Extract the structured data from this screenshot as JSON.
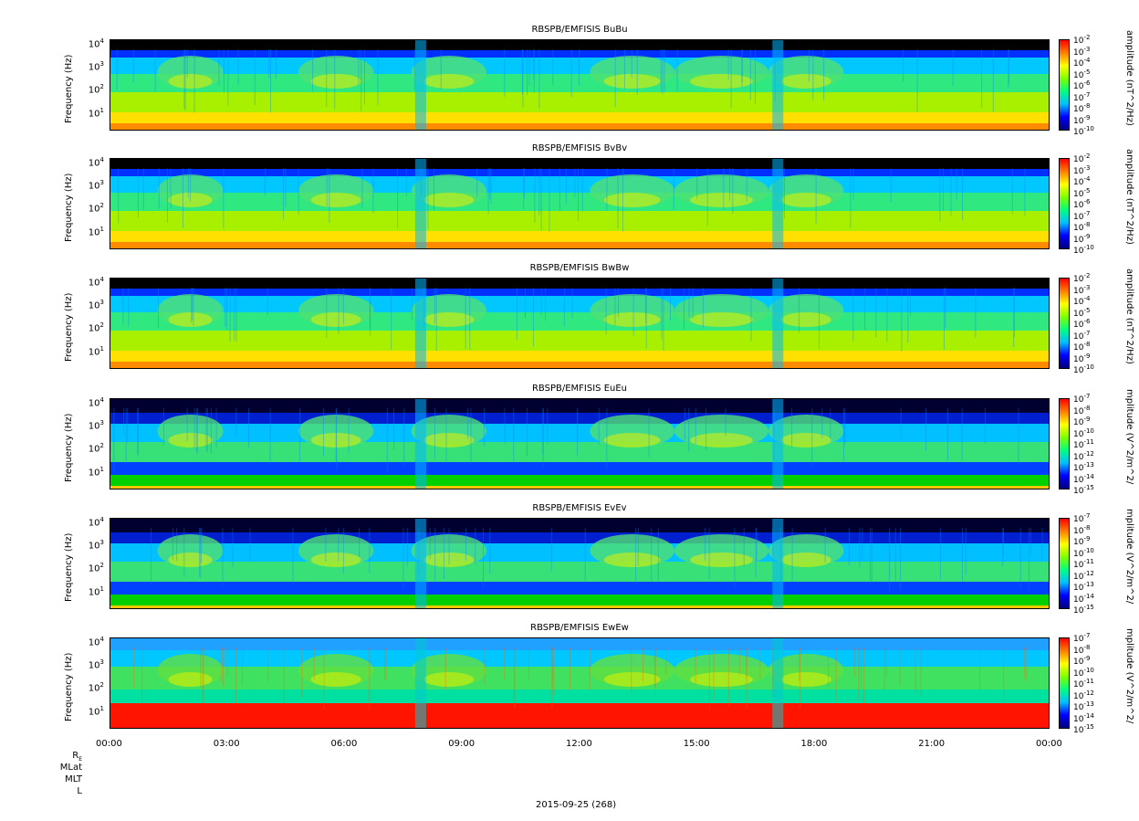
{
  "panels": [
    {
      "title": "RBSPB/EMFISIS  BuBu",
      "cb_label": "amplitude (nT^2/Hz)",
      "cb_ticks": [
        "-2",
        "-3",
        "-4",
        "-5",
        "-6",
        "-7",
        "-8",
        "-9",
        "-10"
      ]
    },
    {
      "title": "RBSPB/EMFISIS  BvBv",
      "cb_label": "amplitude (nT^2/Hz)",
      "cb_ticks": [
        "-2",
        "-3",
        "-4",
        "-5",
        "-6",
        "-7",
        "-8",
        "-9",
        "-10"
      ]
    },
    {
      "title": "RBSPB/EMFISIS  BwBw",
      "cb_label": "amplitude (nT^2/Hz)",
      "cb_ticks": [
        "-2",
        "-3",
        "-4",
        "-5",
        "-6",
        "-7",
        "-8",
        "-9",
        "-10"
      ]
    },
    {
      "title": "RBSPB/EMFISIS  EuEu",
      "cb_label": "mplitude (V^2/m^2/",
      "cb_ticks": [
        "-7",
        "-8",
        "-9",
        "-10",
        "-11",
        "-12",
        "-13",
        "-14",
        "-15"
      ]
    },
    {
      "title": "RBSPB/EMFISIS  EvEv",
      "cb_label": "mplitude (V^2/m^2/",
      "cb_ticks": [
        "-7",
        "-8",
        "-9",
        "-10",
        "-11",
        "-12",
        "-13",
        "-14",
        "-15"
      ]
    },
    {
      "title": "RBSPB/EMFISIS  EwEw",
      "cb_label": "mplitude (V^2/m^2/",
      "cb_ticks": [
        "-7",
        "-8",
        "-9",
        "-10",
        "-11",
        "-12",
        "-13",
        "-14",
        "-15"
      ]
    }
  ],
  "ylabel": "Frequency (Hz)",
  "y_ticks": [
    {
      "base": "10",
      "exp": "4"
    },
    {
      "base": "10",
      "exp": "3"
    },
    {
      "base": "10",
      "exp": "2"
    },
    {
      "base": "10",
      "exp": "1"
    }
  ],
  "x_ticks": [
    "00:00",
    "03:00",
    "06:00",
    "09:00",
    "12:00",
    "15:00",
    "18:00",
    "21:00",
    "00:00"
  ],
  "ephemeris_labels": [
    "R",
    "MLat",
    "MLT",
    "L"
  ],
  "ephemeris_sub": "E",
  "date_label": "2015-09-25 (268)",
  "chart_data": {
    "type": "heatmap",
    "title": "RBSPB/EMFISIS",
    "xlabel": "",
    "ylabel": "Frequency (Hz)",
    "x_range": [
      "2015-09-25T00:00",
      "2015-09-26T00:00"
    ],
    "y_range": [
      2,
      12000
    ],
    "y_scale": "log",
    "components": [
      "BuBu",
      "BvBv",
      "BwBw",
      "EuEu",
      "EvEv",
      "EwEw"
    ],
    "colorbar_magnetic": {
      "label": "amplitude (nT^2/Hz)",
      "log10_range": [
        -10,
        -2
      ]
    },
    "colorbar_electric": {
      "label": "mplitude (V^2/m^2/",
      "log10_range": [
        -15,
        -7
      ]
    },
    "colormap": [
      "#00007f",
      "#0000ff",
      "#00bfff",
      "#00ff80",
      "#80ff00",
      "#ffff00",
      "#ff8000",
      "#ff0000"
    ],
    "color_fill": "#000000"
  }
}
